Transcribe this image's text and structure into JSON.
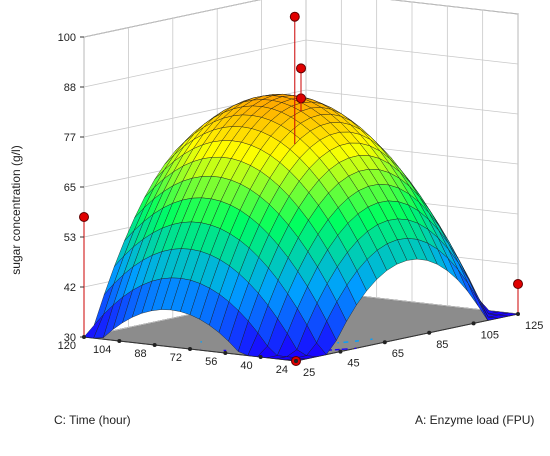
{
  "chart_data": {
    "type": "surface3d",
    "title": "",
    "zlabel": "sugar concentration (g/l)",
    "xlabel": "A: Enzyme load (FPU)",
    "ylabel": "C: Time (hour)",
    "x_ticks": [
      "25",
      "45",
      "65",
      "85",
      "105",
      "125"
    ],
    "y_ticks": [
      "24",
      "40",
      "56",
      "72",
      "88",
      "104",
      "120"
    ],
    "z_ticks": [
      "30",
      "42",
      "53",
      "65",
      "77",
      "88",
      "100"
    ],
    "xlim": [
      25,
      125
    ],
    "ylim": [
      24,
      120
    ],
    "zlim": [
      30,
      100
    ],
    "colormap": [
      "#1a00ff",
      "#00a0ff",
      "#00ff60",
      "#ffff00",
      "#ff8000",
      "#ff0000"
    ],
    "floor_color": "#8c8c8c",
    "grid": true,
    "design_points": [
      {
        "x": 25,
        "y": 120,
        "z": 58
      },
      {
        "x": 25,
        "y": 24,
        "z": 30
      },
      {
        "x": 125,
        "y": 24,
        "z": 37
      },
      {
        "x": 75,
        "y": 72,
        "z": 83
      },
      {
        "x": 75,
        "y": 72,
        "z": 90
      },
      {
        "x": 110,
        "y": 110,
        "z": 96
      }
    ]
  }
}
